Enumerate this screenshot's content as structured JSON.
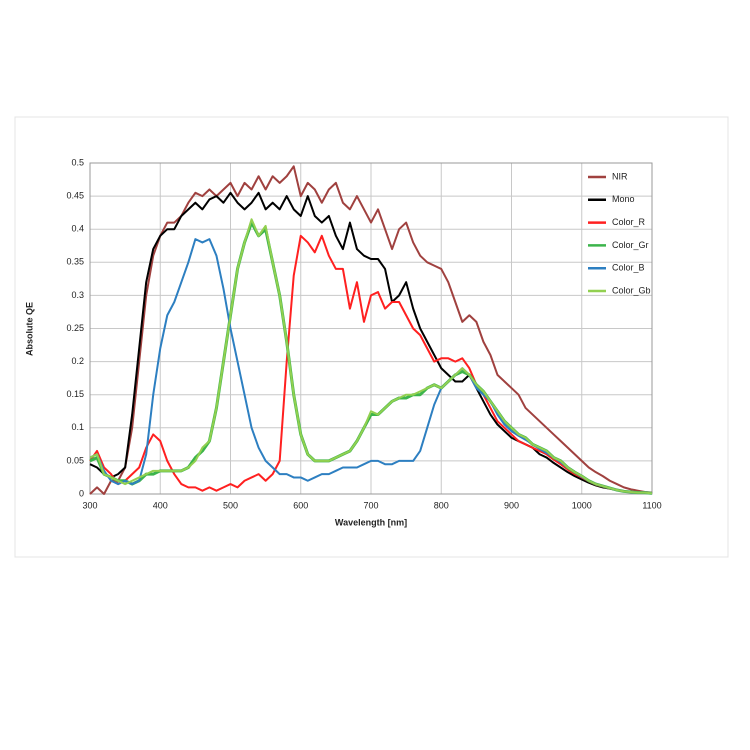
{
  "chart_data": {
    "type": "line",
    "xlabel": "Wavelength [nm]",
    "ylabel": "Absolute QE",
    "x": [
      300,
      310,
      320,
      330,
      340,
      350,
      360,
      370,
      380,
      390,
      400,
      410,
      420,
      430,
      440,
      450,
      460,
      470,
      480,
      490,
      500,
      510,
      520,
      530,
      540,
      550,
      560,
      570,
      580,
      590,
      600,
      610,
      620,
      630,
      640,
      650,
      660,
      670,
      680,
      690,
      700,
      710,
      720,
      730,
      740,
      750,
      760,
      770,
      780,
      790,
      800,
      810,
      820,
      830,
      840,
      850,
      860,
      870,
      880,
      890,
      900,
      910,
      920,
      930,
      940,
      950,
      960,
      970,
      980,
      990,
      1000,
      1010,
      1020,
      1030,
      1040,
      1050,
      1060,
      1070,
      1080,
      1090,
      1100
    ],
    "xlim": [
      300,
      1100
    ],
    "xticks": [
      300,
      400,
      500,
      600,
      700,
      800,
      900,
      1000,
      1100
    ],
    "ylim": [
      0,
      0.5
    ],
    "yticks": [
      0,
      0.05,
      0.1,
      0.15,
      0.2,
      0.25,
      0.3,
      0.35,
      0.4,
      0.45,
      0.5
    ],
    "grid": true,
    "legend": "upper right",
    "series": [
      {
        "name": "NIR",
        "color": "#a0413f",
        "values": [
          0,
          0.01,
          0,
          0.02,
          0.02,
          0.04,
          0.1,
          0.2,
          0.3,
          0.36,
          0.39,
          0.41,
          0.41,
          0.42,
          0.44,
          0.455,
          0.45,
          0.46,
          0.45,
          0.46,
          0.47,
          0.45,
          0.47,
          0.46,
          0.48,
          0.46,
          0.48,
          0.47,
          0.48,
          0.495,
          0.45,
          0.47,
          0.46,
          0.44,
          0.46,
          0.47,
          0.44,
          0.43,
          0.45,
          0.43,
          0.41,
          0.43,
          0.4,
          0.37,
          0.4,
          0.41,
          0.38,
          0.36,
          0.35,
          0.345,
          0.34,
          0.32,
          0.29,
          0.26,
          0.27,
          0.26,
          0.23,
          0.21,
          0.18,
          0.17,
          0.16,
          0.15,
          0.13,
          0.12,
          0.11,
          0.1,
          0.09,
          0.08,
          0.07,
          0.06,
          0.05,
          0.04,
          0.033,
          0.027,
          0.02,
          0.015,
          0.01,
          0.007,
          0.005,
          0.003,
          0.002
        ]
      },
      {
        "name": "Mono",
        "color": "#000000",
        "values": [
          0.045,
          0.04,
          0.03,
          0.025,
          0.03,
          0.04,
          0.12,
          0.22,
          0.32,
          0.37,
          0.39,
          0.4,
          0.4,
          0.42,
          0.43,
          0.44,
          0.43,
          0.445,
          0.45,
          0.44,
          0.455,
          0.44,
          0.43,
          0.44,
          0.455,
          0.43,
          0.44,
          0.43,
          0.45,
          0.43,
          0.42,
          0.45,
          0.42,
          0.41,
          0.42,
          0.39,
          0.37,
          0.41,
          0.37,
          0.36,
          0.355,
          0.355,
          0.34,
          0.29,
          0.3,
          0.32,
          0.28,
          0.25,
          0.23,
          0.21,
          0.19,
          0.18,
          0.17,
          0.17,
          0.18,
          0.16,
          0.14,
          0.12,
          0.105,
          0.095,
          0.085,
          0.08,
          0.075,
          0.07,
          0.06,
          0.055,
          0.047,
          0.04,
          0.033,
          0.027,
          0.022,
          0.017,
          0.013,
          0.01,
          0.008,
          0.006,
          0.004,
          0.003,
          0.002,
          0.002,
          0.001
        ]
      },
      {
        "name": "Color_R",
        "color": "#ff2020",
        "values": [
          0.05,
          0.065,
          0.04,
          0.03,
          0.015,
          0.02,
          0.03,
          0.04,
          0.07,
          0.09,
          0.08,
          0.05,
          0.03,
          0.015,
          0.01,
          0.01,
          0.005,
          0.01,
          0.005,
          0.01,
          0.015,
          0.01,
          0.02,
          0.025,
          0.03,
          0.02,
          0.03,
          0.05,
          0.2,
          0.33,
          0.39,
          0.38,
          0.365,
          0.39,
          0.36,
          0.34,
          0.34,
          0.28,
          0.32,
          0.26,
          0.3,
          0.305,
          0.28,
          0.29,
          0.29,
          0.27,
          0.25,
          0.24,
          0.22,
          0.2,
          0.205,
          0.205,
          0.2,
          0.205,
          0.19,
          0.165,
          0.15,
          0.13,
          0.11,
          0.1,
          0.09,
          0.08,
          0.075,
          0.07,
          0.065,
          0.06,
          0.052,
          0.045,
          0.037,
          0.03,
          0.025,
          0.019,
          0.014,
          0.011,
          0.008,
          0.006,
          0.004,
          0.003,
          0.002,
          0.002,
          0.001
        ]
      },
      {
        "name": "Color_Gr",
        "color": "#3cb44b",
        "values": [
          0.05,
          0.055,
          0.03,
          0.025,
          0.02,
          0.02,
          0.015,
          0.02,
          0.03,
          0.03,
          0.035,
          0.035,
          0.035,
          0.035,
          0.04,
          0.055,
          0.065,
          0.08,
          0.13,
          0.2,
          0.27,
          0.34,
          0.38,
          0.41,
          0.39,
          0.4,
          0.35,
          0.3,
          0.23,
          0.15,
          0.09,
          0.06,
          0.05,
          0.05,
          0.05,
          0.055,
          0.06,
          0.065,
          0.08,
          0.1,
          0.12,
          0.12,
          0.13,
          0.14,
          0.145,
          0.145,
          0.15,
          0.15,
          0.16,
          0.165,
          0.16,
          0.17,
          0.18,
          0.185,
          0.18,
          0.165,
          0.155,
          0.14,
          0.125,
          0.11,
          0.1,
          0.09,
          0.085,
          0.075,
          0.07,
          0.065,
          0.055,
          0.05,
          0.04,
          0.033,
          0.027,
          0.02,
          0.015,
          0.012,
          0.009,
          0.006,
          0.004,
          0.003,
          0.002,
          0.002,
          0.001
        ]
      },
      {
        "name": "Color_B",
        "color": "#2d7fc1",
        "values": [
          0.055,
          0.06,
          0.035,
          0.02,
          0.015,
          0.02,
          0.015,
          0.02,
          0.06,
          0.15,
          0.22,
          0.27,
          0.29,
          0.32,
          0.35,
          0.385,
          0.38,
          0.385,
          0.36,
          0.31,
          0.25,
          0.2,
          0.15,
          0.1,
          0.07,
          0.05,
          0.04,
          0.03,
          0.03,
          0.025,
          0.025,
          0.02,
          0.025,
          0.03,
          0.03,
          0.035,
          0.04,
          0.04,
          0.04,
          0.045,
          0.05,
          0.05,
          0.045,
          0.045,
          0.05,
          0.05,
          0.05,
          0.065,
          0.1,
          0.135,
          0.16,
          0.17,
          0.18,
          0.19,
          0.18,
          0.16,
          0.15,
          0.14,
          0.12,
          0.105,
          0.095,
          0.088,
          0.082,
          0.075,
          0.068,
          0.062,
          0.055,
          0.048,
          0.04,
          0.033,
          0.026,
          0.02,
          0.015,
          0.012,
          0.009,
          0.006,
          0.004,
          0.003,
          0.002,
          0.002,
          0.001
        ]
      },
      {
        "name": "Color_Gb",
        "color": "#92d050",
        "values": [
          0.055,
          0.06,
          0.03,
          0.025,
          0.02,
          0.015,
          0.02,
          0.025,
          0.03,
          0.035,
          0.035,
          0.035,
          0.035,
          0.035,
          0.04,
          0.05,
          0.07,
          0.08,
          0.13,
          0.2,
          0.27,
          0.34,
          0.38,
          0.415,
          0.39,
          0.405,
          0.35,
          0.3,
          0.23,
          0.15,
          0.09,
          0.06,
          0.05,
          0.05,
          0.05,
          0.055,
          0.06,
          0.065,
          0.08,
          0.1,
          0.125,
          0.12,
          0.13,
          0.14,
          0.145,
          0.15,
          0.15,
          0.155,
          0.16,
          0.165,
          0.16,
          0.17,
          0.18,
          0.19,
          0.18,
          0.165,
          0.155,
          0.14,
          0.125,
          0.11,
          0.1,
          0.09,
          0.085,
          0.075,
          0.07,
          0.065,
          0.055,
          0.05,
          0.04,
          0.033,
          0.027,
          0.02,
          0.015,
          0.012,
          0.009,
          0.006,
          0.004,
          0.003,
          0.002,
          0.002,
          0.001
        ]
      }
    ]
  }
}
